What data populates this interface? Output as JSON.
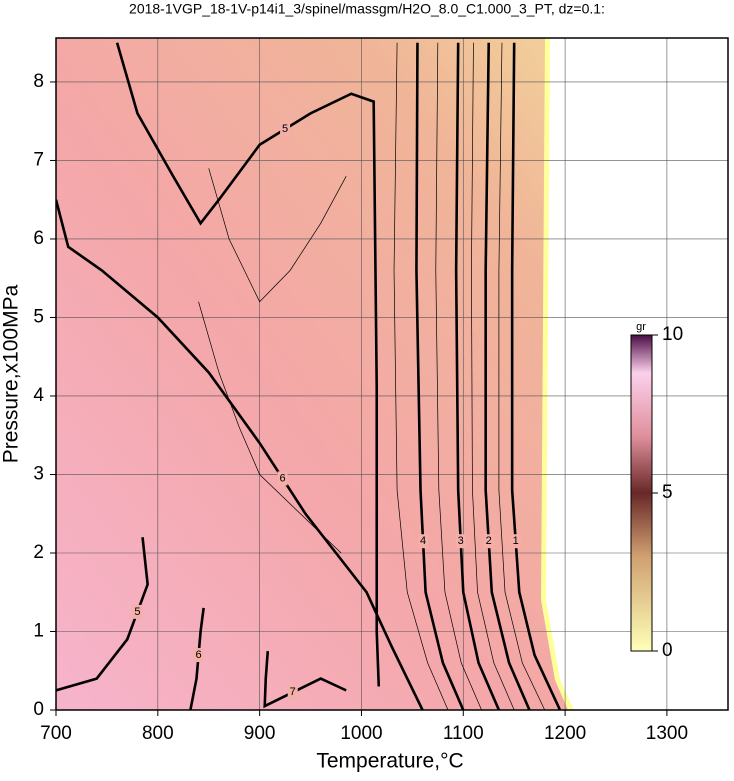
{
  "chart_data": {
    "type": "contour",
    "title": "2018-1VGP_18-1V-p14i1_3/spinel/massgm/H2O_8.0_C1.000_3_PT, dz=0.1:",
    "xlabel": "Temperature,°C",
    "ylabel": "Pressure,x100MPa",
    "xlim": [
      700,
      1360
    ],
    "ylim": [
      0,
      8.56
    ],
    "xticks": [
      700,
      800,
      900,
      1000,
      1100,
      1200,
      1300
    ],
    "yticks": [
      0,
      1,
      2,
      3,
      4,
      5,
      6,
      7,
      8
    ],
    "grid": true,
    "colorbar": {
      "label": "gr",
      "lim": [
        0,
        10
      ],
      "ticks": [
        0,
        5,
        10
      ]
    },
    "contours": [
      {
        "level": 1,
        "x": [
          1150,
          1148,
          1148,
          1155,
          1170,
          1195
        ],
        "y": [
          8.5,
          5.6,
          2.8,
          1.5,
          0.7,
          0
        ]
      },
      {
        "level": 2,
        "x": [
          1125,
          1122,
          1122,
          1128,
          1145,
          1165
        ],
        "y": [
          8.5,
          5.6,
          2.8,
          1.5,
          0.6,
          0
        ]
      },
      {
        "level": 3,
        "x": [
          1095,
          1093,
          1095,
          1100,
          1115,
          1135
        ],
        "y": [
          8.5,
          5.6,
          2.8,
          1.5,
          0.6,
          0
        ]
      },
      {
        "level": 4,
        "x": [
          1055,
          1054,
          1058,
          1063,
          1080,
          1100
        ],
        "y": [
          8.5,
          5.6,
          2.8,
          1.5,
          0.6,
          0
        ]
      },
      {
        "level": 5,
        "x": [
          760,
          780,
          815,
          842,
          860,
          900,
          950,
          990,
          1012,
          1015,
          1015,
          1017
        ],
        "y": [
          8.5,
          7.6,
          6.8,
          6.2,
          6.5,
          7.2,
          7.6,
          7.85,
          7.75,
          4.1,
          1.0,
          0.3
        ]
      },
      {
        "level": 6,
        "x": [
          700,
          712,
          745,
          800,
          850,
          900,
          945,
          975,
          1005,
          1030,
          1060
        ],
        "y": [
          6.5,
          5.9,
          5.6,
          5.0,
          4.3,
          3.4,
          2.5,
          2.0,
          1.5,
          0.8,
          0
        ]
      },
      {
        "level": 5,
        "x": [
          700,
          740,
          770,
          790,
          785
        ],
        "y": [
          0.25,
          0.4,
          0.9,
          1.6,
          2.2
        ]
      },
      {
        "level": 6,
        "x": [
          845,
          842,
          838,
          832
        ],
        "y": [
          1.3,
          1.0,
          0.4,
          0
        ]
      },
      {
        "level": 7,
        "x": [
          908,
          906,
          905,
          960,
          985
        ],
        "y": [
          0.75,
          0.4,
          0.05,
          0.4,
          0.25
        ]
      },
      {
        "level": 4.5,
        "x": [
          1035,
          1032,
          1035,
          1045,
          1065,
          1085
        ],
        "y": [
          8.5,
          5.6,
          2.8,
          1.5,
          0.6,
          0
        ]
      },
      {
        "level": 3.5,
        "x": [
          1075,
          1073,
          1076,
          1082,
          1098,
          1118
        ],
        "y": [
          8.5,
          5.6,
          2.8,
          1.5,
          0.6,
          0
        ]
      },
      {
        "level": 2.5,
        "x": [
          1110,
          1108,
          1109,
          1114,
          1130,
          1150
        ],
        "y": [
          8.5,
          5.6,
          2.8,
          1.5,
          0.6,
          0
        ]
      },
      {
        "level": 1.5,
        "x": [
          1138,
          1135,
          1135,
          1141,
          1158,
          1180
        ],
        "y": [
          8.5,
          5.6,
          2.8,
          1.5,
          0.6,
          0
        ]
      },
      {
        "level": 5.5,
        "x": [
          840,
          860,
          880,
          900,
          940,
          980
        ],
        "y": [
          5.2,
          4.3,
          3.6,
          3.0,
          2.5,
          2.0
        ]
      },
      {
        "level": 5.5,
        "x": [
          850,
          870,
          900,
          930,
          960,
          985
        ],
        "y": [
          6.9,
          6.0,
          5.2,
          5.6,
          6.2,
          6.8
        ]
      }
    ]
  }
}
